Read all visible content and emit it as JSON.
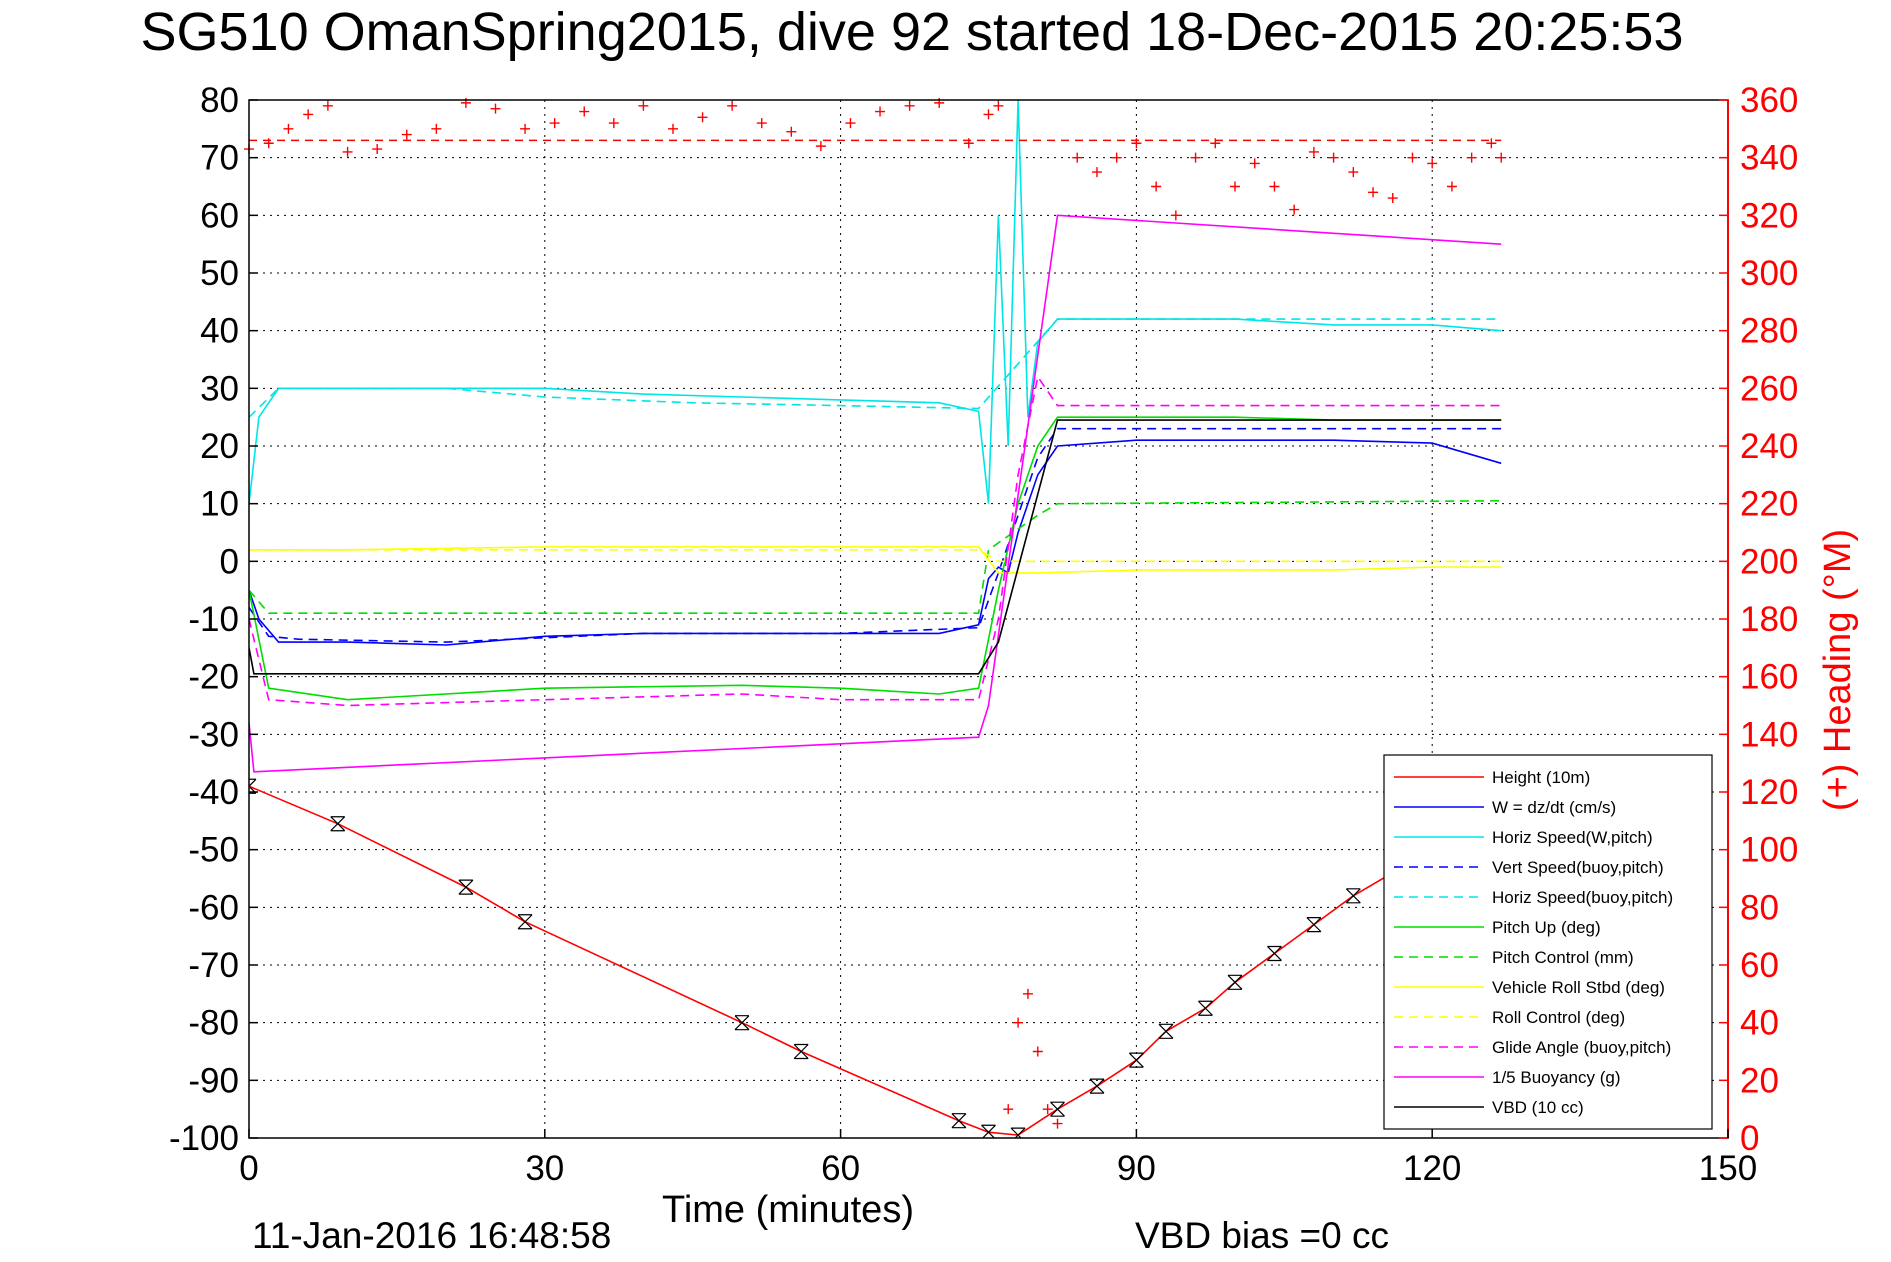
{
  "chart_data": {
    "type": "line",
    "title": "SG510 OmanSpring2015, dive 92 started 18-Dec-2015 20:25:53",
    "xlabel": "Time (minutes)",
    "ylabel": "",
    "y2label": "(+) Heading (°M)",
    "xlim": [
      0,
      150
    ],
    "ylim": [
      -100,
      80
    ],
    "y2lim": [
      0,
      360
    ],
    "xticks": [
      "0",
      "30",
      "60",
      "90",
      "120",
      "150"
    ],
    "yticks": [
      "80",
      "70",
      "60",
      "50",
      "40",
      "30",
      "20",
      "10",
      "0",
      "-10",
      "-20",
      "-30",
      "-40",
      "-50",
      "-60",
      "-70",
      "-80",
      "-90",
      "-100"
    ],
    "y2ticks": [
      "360",
      "340",
      "320",
      "300",
      "280",
      "260",
      "240",
      "220",
      "200",
      "180",
      "160",
      "140",
      "120",
      "100",
      "80",
      "60",
      "40",
      "20",
      "0"
    ],
    "grid": true,
    "legend_position": "bottom-right",
    "footer_left": "11-Jan-2016 16:48:58",
    "footer_right": "VBD bias =0 cc",
    "colors": {
      "red": "#ff0000",
      "blue": "#0000ff",
      "cyan": "#00e5e5",
      "green": "#00dd00",
      "yellow": "#ffff00",
      "magenta": "#ff00ff",
      "black": "#000000"
    },
    "series": [
      {
        "name": "Height (10m)",
        "color": "#ff0000",
        "style": "solid",
        "x": [
          0,
          9,
          22,
          28,
          50,
          56,
          72,
          75,
          78,
          82,
          86,
          90,
          93,
          97,
          100,
          104,
          108,
          112,
          116
        ],
        "y": [
          -39,
          -45.5,
          -56.5,
          -62.5,
          -80,
          -85,
          -97,
          -99,
          -99.5,
          -95,
          -91,
          -86.5,
          -81.5,
          -77.5,
          -73,
          -68,
          -63,
          -58,
          -54
        ]
      },
      {
        "name": "W = dz/dt (cm/s)",
        "color": "#0000ff",
        "style": "solid",
        "x": [
          0,
          1,
          3,
          10,
          20,
          30,
          40,
          50,
          60,
          70,
          74,
          75,
          76,
          77,
          78,
          80,
          82,
          90,
          100,
          110,
          120,
          127
        ],
        "y": [
          -5,
          -10,
          -14,
          -14,
          -14.5,
          -13,
          -12.5,
          -12.5,
          -12.5,
          -12.5,
          -11,
          -3,
          -1,
          -2,
          5,
          15,
          20,
          21,
          21,
          21,
          20.5,
          17
        ]
      },
      {
        "name": "Horiz Speed(W,pitch)",
        "color": "#00e5e5",
        "style": "solid",
        "x": [
          0,
          1,
          3,
          10,
          20,
          30,
          40,
          50,
          60,
          70,
          74,
          75,
          76,
          77,
          78,
          79,
          80,
          82,
          90,
          100,
          110,
          120,
          127
        ],
        "y": [
          10,
          25,
          30,
          30,
          30,
          30,
          29,
          28.5,
          28,
          27.5,
          26,
          10,
          60,
          20,
          80,
          25,
          38,
          42,
          42,
          42,
          41,
          41,
          40
        ]
      },
      {
        "name": "Vert Speed(buoy,pitch)",
        "color": "#0000ff",
        "style": "dashed",
        "x": [
          0,
          2,
          5,
          20,
          40,
          60,
          74,
          76,
          78,
          80,
          82,
          127
        ],
        "y": [
          -8,
          -13,
          -13.5,
          -14,
          -12.5,
          -12.5,
          -11.5,
          -2,
          8,
          18,
          23,
          23
        ]
      },
      {
        "name": "Horiz Speed(buoy,pitch)",
        "color": "#00e5e5",
        "style": "dashed",
        "x": [
          0,
          3,
          20,
          30,
          45,
          60,
          74,
          82,
          127
        ],
        "y": [
          25,
          30,
          30,
          28.5,
          27.5,
          27,
          26.5,
          42,
          42
        ]
      },
      {
        "name": "Pitch Up (deg)",
        "color": "#00dd00",
        "style": "solid",
        "x": [
          0,
          2,
          10,
          30,
          50,
          60,
          70,
          74,
          76,
          78,
          80,
          82,
          90,
          100,
          110,
          120,
          127
        ],
        "y": [
          -5,
          -22,
          -24,
          -22,
          -21.5,
          -22,
          -23,
          -22,
          -5,
          10,
          20,
          25,
          25,
          25,
          24.5,
          24.5,
          24.5
        ]
      },
      {
        "name": "Pitch Control (mm)",
        "color": "#00dd00",
        "style": "dashed",
        "x": [
          0,
          2,
          74,
          75,
          80,
          82,
          127
        ],
        "y": [
          -5,
          -9,
          -9,
          2,
          8,
          10,
          10.5
        ]
      },
      {
        "name": "Vehicle Roll Stbd (deg)",
        "color": "#ffff00",
        "style": "solid",
        "x": [
          0,
          2,
          10,
          30,
          50,
          74,
          76,
          80,
          90,
          100,
          110,
          120,
          127
        ],
        "y": [
          2,
          2,
          2,
          2.5,
          2.5,
          2.5,
          -2,
          -2,
          -1.5,
          -1.5,
          -1.5,
          -1,
          -1
        ]
      },
      {
        "name": "Roll Control (deg)",
        "color": "#ffff00",
        "style": "dashed",
        "x": [
          0,
          74,
          76,
          127
        ],
        "y": [
          2,
          2,
          0,
          0
        ]
      },
      {
        "name": "Glide Angle (buoy,pitch)",
        "color": "#ff00ff",
        "style": "dashed",
        "x": [
          0,
          2,
          10,
          30,
          50,
          60,
          74,
          76,
          78,
          80,
          82,
          90,
          100,
          110,
          120,
          127
        ],
        "y": [
          -10,
          -24,
          -25,
          -24,
          -23,
          -24,
          -24,
          -10,
          15,
          32,
          27,
          27,
          27,
          27,
          27,
          27
        ]
      },
      {
        "name": "1/5 Buoyancy (g)",
        "color": "#ff00ff",
        "style": "solid",
        "x": [
          0,
          0.5,
          74,
          75,
          82,
          127
        ],
        "y": [
          -28,
          -36.5,
          -30.5,
          -25,
          60,
          55
        ]
      },
      {
        "name": "VBD (10 cc)",
        "color": "#000000",
        "style": "solid",
        "x": [
          0,
          0.5,
          74,
          76,
          82,
          127
        ],
        "y": [
          -15,
          -19.5,
          -19.5,
          -14,
          24.5,
          24.5
        ]
      }
    ],
    "heading": {
      "name": "Heading (deg M)",
      "color": "#ff0000",
      "marker": "+",
      "mean": 346,
      "x": [
        0,
        2,
        4,
        6,
        8,
        10,
        13,
        16,
        19,
        22,
        25,
        28,
        31,
        34,
        37,
        40,
        43,
        46,
        49,
        52,
        55,
        58,
        61,
        64,
        67,
        70,
        73,
        75,
        76,
        77,
        78,
        79,
        80,
        81,
        82,
        84,
        86,
        88,
        90,
        92,
        94,
        96,
        98,
        100,
        102,
        104,
        106,
        108,
        110,
        112,
        114,
        116,
        118,
        120,
        122,
        124,
        126,
        127
      ],
      "y": [
        343,
        345,
        350,
        355,
        358,
        342,
        343,
        348,
        350,
        359,
        357,
        350,
        352,
        356,
        352,
        358,
        350,
        354,
        358,
        352,
        349,
        344,
        352,
        356,
        358,
        359,
        345,
        355,
        358,
        10,
        40,
        50,
        30,
        10,
        5,
        340,
        335,
        340,
        345,
        330,
        320,
        340,
        345,
        330,
        338,
        330,
        322,
        342,
        340,
        335,
        328,
        326,
        340,
        338,
        330,
        340,
        345,
        340
      ]
    }
  }
}
